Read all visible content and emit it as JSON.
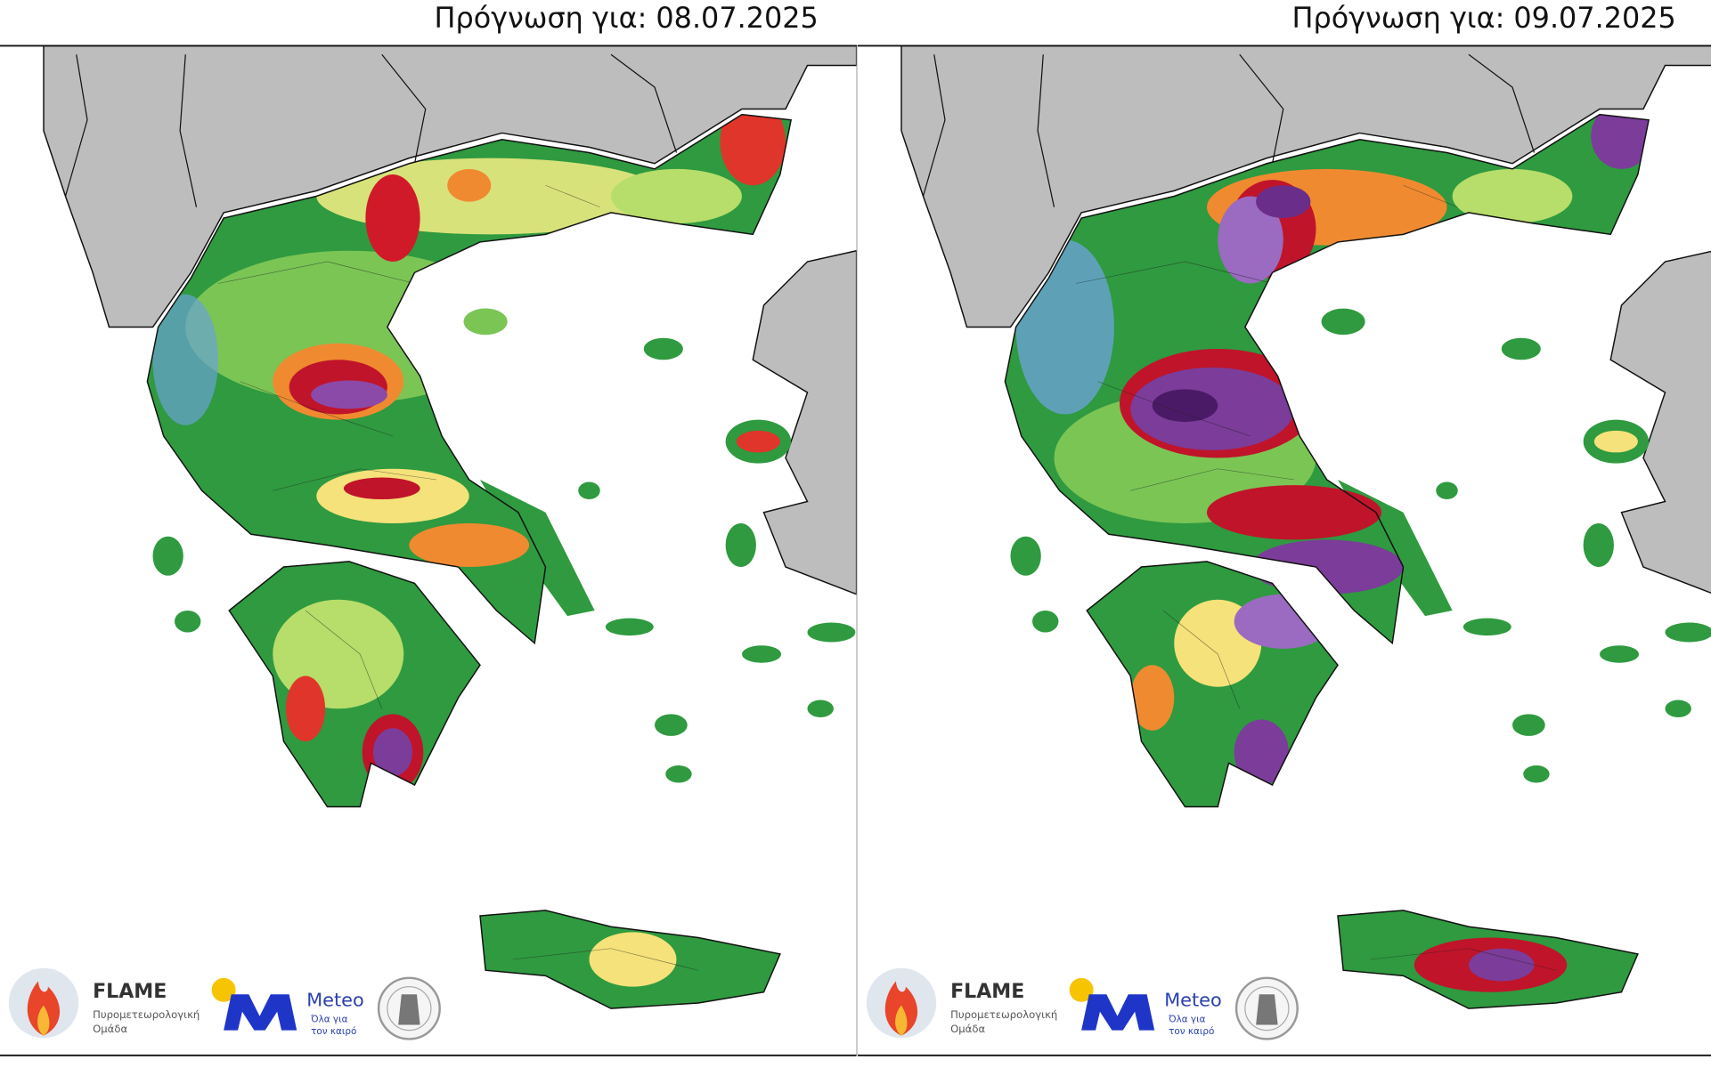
{
  "panels": [
    {
      "title": "Πρόγνωση για: 08.07.2025",
      "logos": {
        "flame": "FLAME",
        "flame_sub": [
          "Πυρομετεωρολογική",
          "Ομάδα"
        ],
        "meteo": "Meteo",
        "meteo_sub": [
          "Όλα για",
          "τον καιρό"
        ]
      }
    },
    {
      "title": "Πρόγνωση για: 09.07.2025",
      "logos": {
        "flame": "FLAME",
        "flame_sub": [
          "Πυρομετεωρολογική",
          "Ομάδα"
        ],
        "meteo": "Meteo",
        "meteo_sub": [
          "Όλα για",
          "τον καιρό"
        ]
      }
    }
  ]
}
